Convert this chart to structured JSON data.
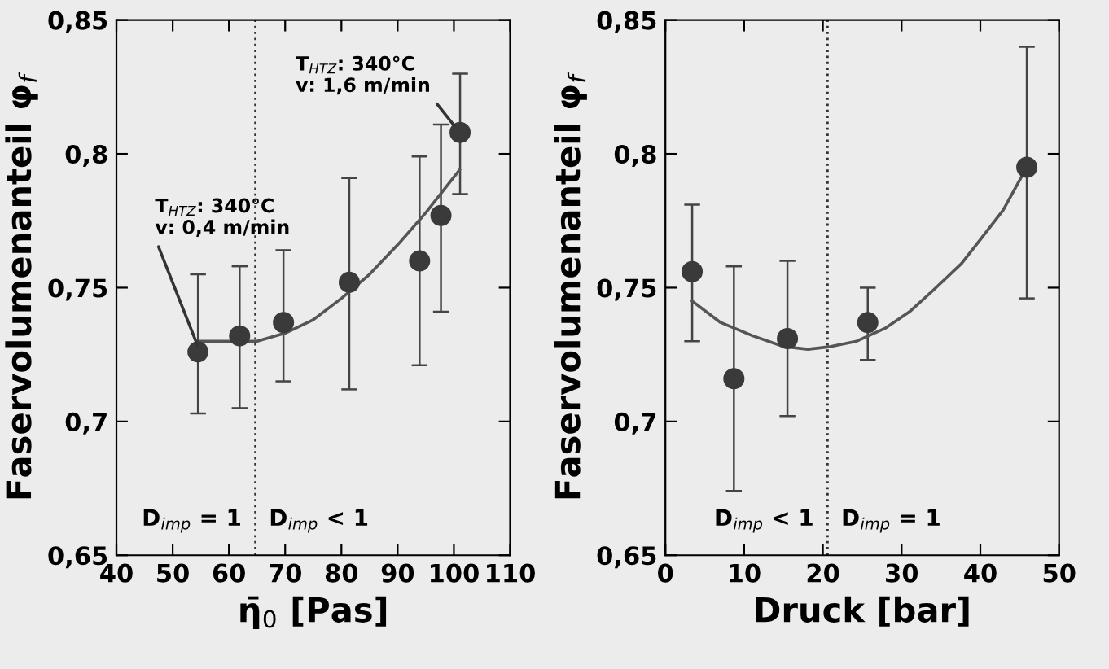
{
  "chart_data": [
    {
      "type": "scatter",
      "xlabel": "η̄$_{0}$ [Pas]",
      "ylabel": "Faservolumenanteil φ$_{f}$",
      "xlim": [
        40,
        110
      ],
      "ylim": [
        0.65,
        0.85
      ],
      "xticks": [
        40,
        50,
        60,
        70,
        80,
        90,
        100,
        110
      ],
      "yticks": [
        {
          "value": 0.65,
          "label": "0,65"
        },
        {
          "value": 0.7,
          "label": "0,7"
        },
        {
          "value": 0.75,
          "label": "0,75"
        },
        {
          "value": 0.8,
          "label": "0,8"
        },
        {
          "value": 0.85,
          "label": "0,85"
        }
      ],
      "grid": false,
      "legend": false,
      "series": [
        {
          "marker": "circle",
          "color": "#3a3a3a",
          "x": [
            54.5,
            61.9,
            69.7,
            81.4,
            93.9,
            97.7,
            101.1
          ],
          "values": [
            0.726,
            0.732,
            0.737,
            0.752,
            0.76,
            0.777,
            0.808
          ],
          "errors": [
            [
              0.703,
              0.755
            ],
            [
              0.705,
              0.758
            ],
            [
              0.715,
              0.764
            ],
            [
              0.712,
              0.791
            ],
            [
              0.721,
              0.799
            ],
            [
              0.741,
              0.811
            ],
            [
              0.785,
              0.83
            ]
          ]
        },
        {
          "type": "line",
          "color": "#555555",
          "x": [
            55,
            60,
            65,
            70,
            75,
            80,
            85,
            90,
            95,
            101
          ],
          "values": [
            0.73,
            0.73,
            0.73,
            0.733,
            0.738,
            0.746,
            0.755,
            0.766,
            0.778,
            0.794
          ]
        }
      ],
      "ref_lines": [
        {
          "axis": "x",
          "value": 64.7,
          "line_style": "dotted",
          "color": "#333333"
        }
      ],
      "annotations": [
        {
          "text": "T$_{HTZ}$: 340°C\nv: 0,4 m/min",
          "x": 54.5,
          "y": 0.728
        },
        {
          "text": "T$_{HTZ}$: 340°C\nv: 1,6 m/min",
          "x": 100.0,
          "y": 0.8107
        },
        "D$_{imp}$ = 1",
        "D$_{imp}$ < 1"
      ]
    },
    {
      "type": "scatter",
      "xlabel": "Druck [bar]",
      "ylabel": "Faservolumenanteil φ$_{f}$",
      "xlim": [
        0,
        50
      ],
      "ylim": [
        0.65,
        0.85
      ],
      "xticks": [
        0,
        10,
        20,
        30,
        40,
        50
      ],
      "yticks": [
        {
          "value": 0.65,
          "label": "0,65"
        },
        {
          "value": 0.7,
          "label": "0,7"
        },
        {
          "value": 0.75,
          "label": "0,75"
        },
        {
          "value": 0.8,
          "label": "0,8"
        },
        {
          "value": 0.85,
          "label": "0,85"
        }
      ],
      "grid": false,
      "legend": false,
      "series": [
        {
          "marker": "circle",
          "color": "#3a3a3a",
          "x": [
            3.4,
            8.7,
            15.5,
            25.7,
            45.9
          ],
          "values": [
            0.756,
            0.716,
            0.731,
            0.737,
            0.795
          ],
          "errors": [
            [
              0.73,
              0.781
            ],
            [
              0.674,
              0.758
            ],
            [
              0.702,
              0.76
            ],
            [
              0.723,
              0.75
            ],
            [
              0.746,
              0.84
            ]
          ]
        },
        {
          "type": "line",
          "color": "#555555",
          "x": [
            3.4,
            7,
            11.1,
            15,
            18.1,
            21,
            24.3,
            28,
            31,
            34,
            37.6,
            40,
            42.9,
            45.9
          ],
          "values": [
            0.745,
            0.737,
            0.732,
            0.728,
            0.727,
            0.728,
            0.73,
            0.735,
            0.741,
            0.749,
            0.759,
            0.768,
            0.779,
            0.795
          ]
        }
      ],
      "ref_lines": [
        {
          "axis": "x",
          "value": 20.6,
          "line_style": "dotted",
          "color": "#333333"
        }
      ],
      "annotations": [
        "D$_{imp}$ < 1",
        "D$_{imp}$ = 1"
      ]
    }
  ]
}
